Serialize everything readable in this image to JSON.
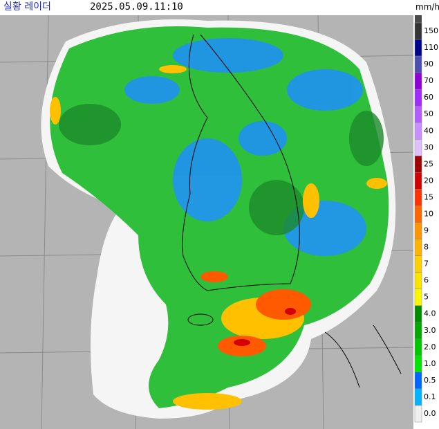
{
  "header": {
    "title": "실황 레이더",
    "time": "2025.05.09.11:10"
  },
  "legend": {
    "unit": "mm/h",
    "levels": [
      {
        "label": "150",
        "color": "#333333"
      },
      {
        "label": "110",
        "color": "#000390"
      },
      {
        "label": "90",
        "color": "#4c4eb1"
      },
      {
        "label": "70",
        "color": "#8f00d6"
      },
      {
        "label": "60",
        "color": "#a12aff"
      },
      {
        "label": "50",
        "color": "#b35cff"
      },
      {
        "label": "40",
        "color": "#c98fff"
      },
      {
        "label": "30",
        "color": "#dfbfff"
      },
      {
        "label": "25",
        "color": "#a00000"
      },
      {
        "label": "20",
        "color": "#d20000"
      },
      {
        "label": "15",
        "color": "#ff3200"
      },
      {
        "label": "10",
        "color": "#ff6600"
      },
      {
        "label": "9",
        "color": "#ff9300"
      },
      {
        "label": "8",
        "color": "#ffb400"
      },
      {
        "label": "7",
        "color": "#ffd000"
      },
      {
        "label": "6",
        "color": "#ffe400"
      },
      {
        "label": "5",
        "color": "#fff700"
      },
      {
        "label": "4.0",
        "color": "#008c00"
      },
      {
        "label": "3.0",
        "color": "#00a800"
      },
      {
        "label": "2.0",
        "color": "#00c800"
      },
      {
        "label": "1.0",
        "color": "#00e600"
      },
      {
        "label": "0.5",
        "color": "#0064ff"
      },
      {
        "label": "0.1",
        "color": "#00b4ff"
      },
      {
        "label": "0.0",
        "color": "#f0f0f0"
      }
    ]
  }
}
